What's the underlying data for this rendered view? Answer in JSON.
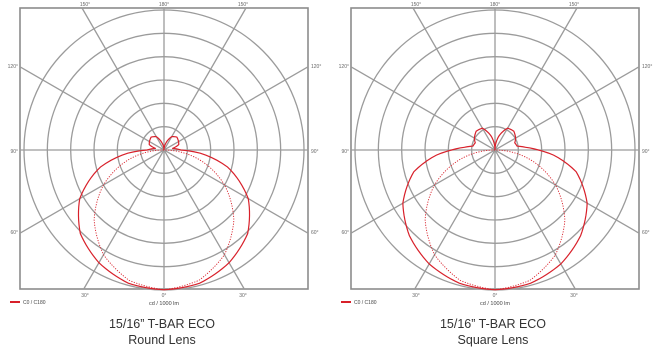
{
  "colors": {
    "grid": "#9b9b9b",
    "curve": "#d8202a",
    "frame": "#8c8c8c"
  },
  "chart_data": [
    {
      "type": "polar",
      "title": "15/16” T-BAR ECO",
      "subtitle": "Round Lens",
      "unit_label": "cd / 1000 lm",
      "angle_labels": [
        "0°",
        "30°",
        "60°",
        "90°",
        "120°",
        "150°",
        "180°",
        "150°",
        "120°",
        "90°",
        "60°",
        "30°"
      ],
      "rlim": [
        0,
        1
      ],
      "grid": true,
      "legend": {
        "position": "bottom-left",
        "entries": [
          {
            "label": "C0 / C180"
          }
        ]
      },
      "series": [
        {
          "style": "solid",
          "angles": [
            0,
            15,
            30,
            45,
            60,
            75,
            85,
            90,
            95,
            100,
            110,
            120,
            135,
            150,
            165,
            180
          ],
          "values": [
            0.998,
            0.985,
            0.93,
            0.845,
            0.695,
            0.47,
            0.26,
            0.12,
            0.09,
            0.06,
            0.112,
            0.12,
            0.13,
            0.11,
            0.05,
            0.0
          ]
        },
        {
          "style": "dotted",
          "angles": [
            0,
            15,
            30,
            45,
            60,
            75,
            85,
            90
          ],
          "values": [
            0.998,
            0.964,
            0.864,
            0.706,
            0.499,
            0.258,
            0.087,
            0.0
          ]
        }
      ]
    },
    {
      "type": "polar",
      "title": "15/16” T-BAR ECO",
      "subtitle": "Square Lens",
      "unit_label": "cd / 1000 lm",
      "angle_labels": [
        "0°",
        "30°",
        "60°",
        "90°",
        "120°",
        "150°",
        "180°",
        "150°",
        "120°",
        "90°",
        "60°",
        "30°"
      ],
      "rlim": [
        0,
        1
      ],
      "grid": true,
      "legend": {
        "position": "bottom-left",
        "entries": [
          {
            "label": "C0 / C180"
          }
        ]
      },
      "series": [
        {
          "style": "solid",
          "angles": [
            0,
            15,
            30,
            45,
            60,
            75,
            85,
            90,
            95,
            100,
            110,
            120,
            135,
            150,
            165,
            180
          ],
          "values": [
            0.998,
            0.985,
            0.94,
            0.865,
            0.76,
            0.6,
            0.42,
            0.31,
            0.22,
            0.16,
            0.15,
            0.17,
            0.19,
            0.18,
            0.1,
            0.0
          ]
        },
        {
          "style": "dotted",
          "angles": [
            0,
            15,
            30,
            45,
            60,
            75,
            85,
            90
          ],
          "values": [
            0.998,
            0.964,
            0.864,
            0.706,
            0.499,
            0.258,
            0.087,
            0.0
          ]
        }
      ]
    }
  ]
}
